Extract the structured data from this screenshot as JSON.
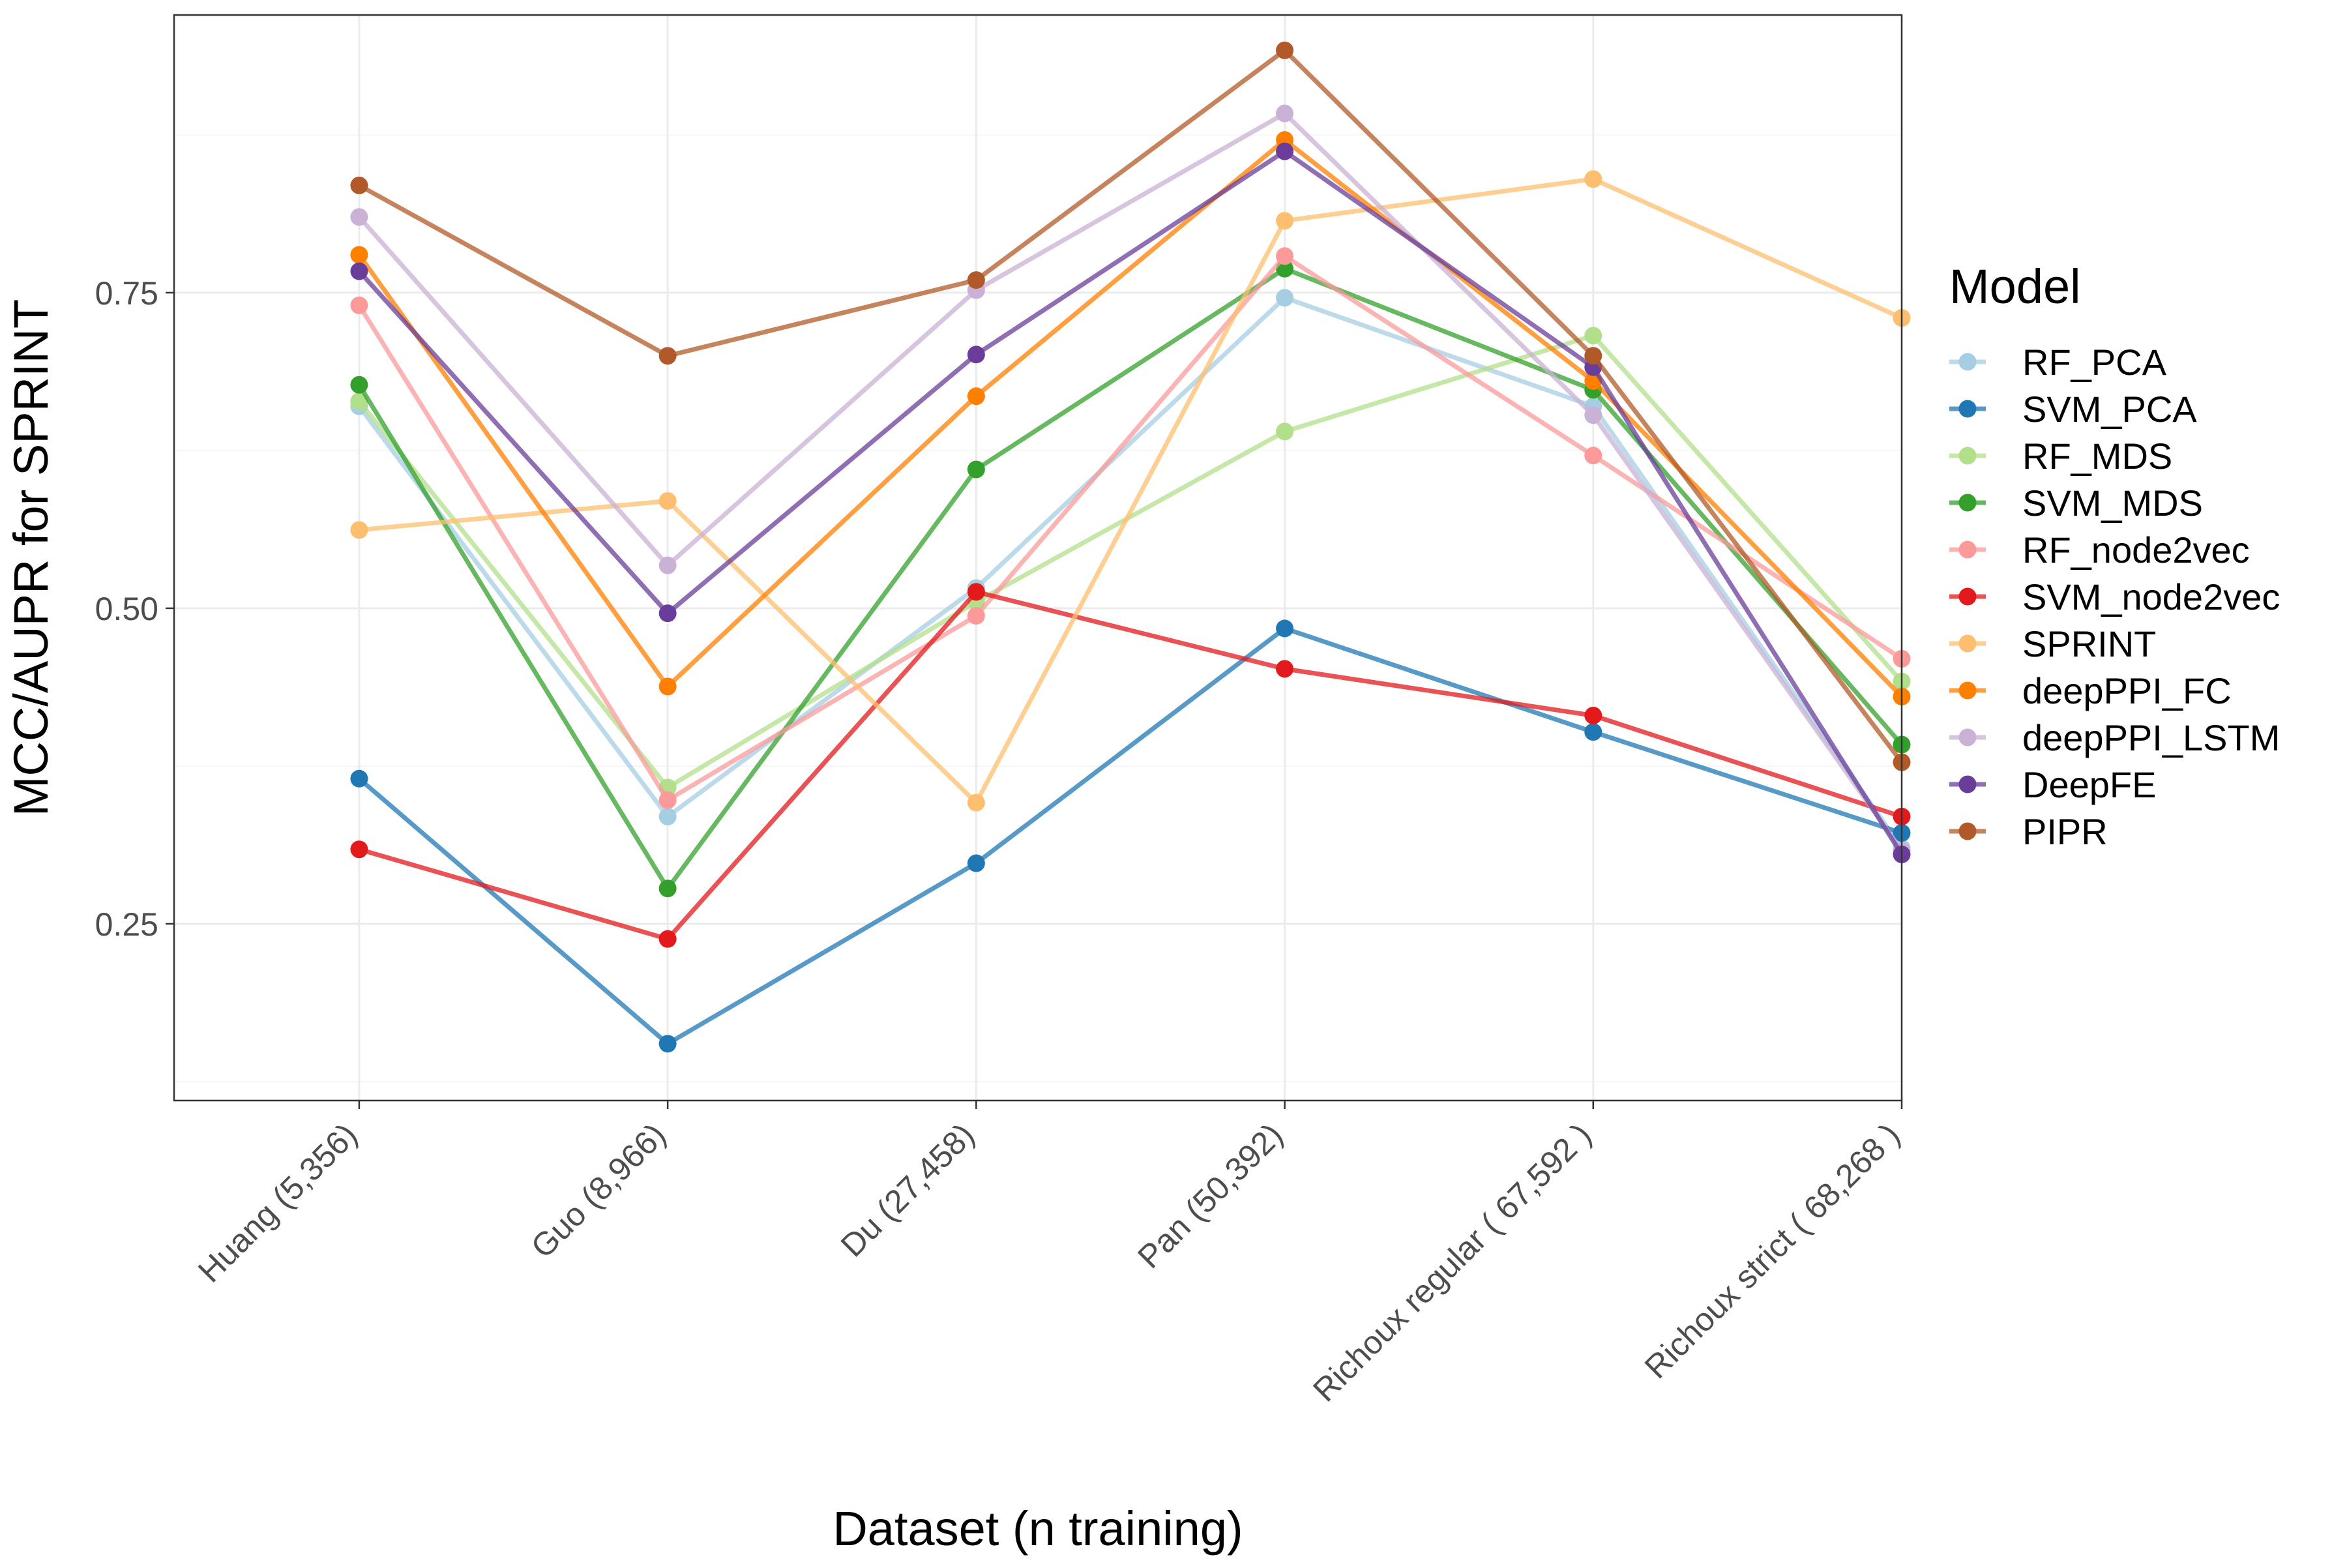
{
  "chart_data": {
    "type": "line",
    "title": "",
    "xlabel": "Dataset (n training)",
    "ylabel": "MCC/AUPR for SPRINT",
    "categories": [
      "Huang (5,356)",
      "Guo (8,966)",
      "Du (27,458)",
      "Pan (50,392)",
      "Richoux regular ( 67,592 )",
      "Richoux strict ( 68,268 )"
    ],
    "ylim": [
      0.11,
      0.97
    ],
    "yticks": [
      0.25,
      0.5,
      0.75
    ],
    "ytick_labels": [
      "0.25",
      "0.50",
      "0.75"
    ],
    "grid": true,
    "legend_title": "Model",
    "legend_position": "right",
    "series": [
      {
        "name": "RF_PCA",
        "color": "#A6CEE3",
        "values": [
          0.66,
          0.335,
          0.516,
          0.746,
          0.66,
          0.31
        ]
      },
      {
        "name": "SVM_PCA",
        "color": "#1F78B4",
        "values": [
          0.365,
          0.155,
          0.298,
          0.484,
          0.402,
          0.322
        ]
      },
      {
        "name": "RF_MDS",
        "color": "#B2DF8A",
        "values": [
          0.664,
          0.358,
          0.505,
          0.64,
          0.716,
          0.442
        ]
      },
      {
        "name": "SVM_MDS",
        "color": "#33A02C",
        "values": [
          0.677,
          0.278,
          0.61,
          0.769,
          0.673,
          0.392
        ]
      },
      {
        "name": "RF_node2vec",
        "color": "#FB9A99",
        "values": [
          0.74,
          0.348,
          0.494,
          0.779,
          0.621,
          0.46
        ]
      },
      {
        "name": "SVM_node2vec",
        "color": "#E31A1C",
        "values": [
          0.309,
          0.238,
          0.513,
          0.452,
          0.415,
          0.335
        ]
      },
      {
        "name": "SPRINT",
        "color": "#FDBF6F",
        "values": [
          0.562,
          0.585,
          0.346,
          0.807,
          0.84,
          0.73
        ]
      },
      {
        "name": "deepPPI_FC",
        "color": "#FF7F00",
        "values": [
          0.78,
          0.438,
          0.668,
          0.871,
          0.68,
          0.43
        ]
      },
      {
        "name": "deepPPI_LSTM",
        "color": "#CAB2D6",
        "values": [
          0.81,
          0.534,
          0.752,
          0.892,
          0.653,
          0.308
        ]
      },
      {
        "name": "DeepFE",
        "color": "#6A3D9A",
        "values": [
          0.767,
          0.496,
          0.701,
          0.862,
          0.691,
          0.305
        ]
      },
      {
        "name": "PIPR",
        "color": "#B15928",
        "values": [
          0.835,
          0.7,
          0.76,
          0.942,
          0.7,
          0.378
        ]
      }
    ]
  }
}
